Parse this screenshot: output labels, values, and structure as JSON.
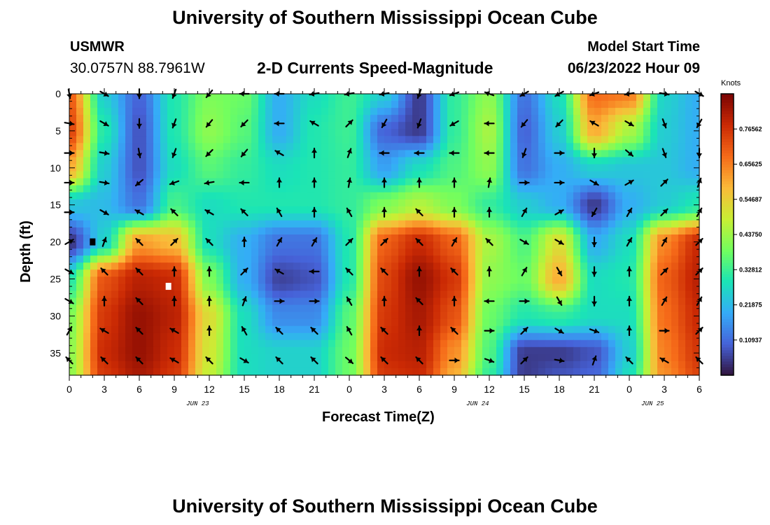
{
  "header": {
    "title": "University of Southern Mississippi Ocean Cube",
    "station_id": "USMWR",
    "station_coords": "30.0757N  88.7961W",
    "plot_title": "2-D Currents Speed-Magnitude",
    "model_start_label": "Model Start Time",
    "model_start_value": "06/23/2022 Hour 09"
  },
  "footer": {
    "title": "University of Southern Mississippi Ocean Cube"
  },
  "colorbar": {
    "units": "Knots",
    "ticks": [
      "0.10937",
      "0.21875",
      "0.32812",
      "0.43750",
      "0.54687",
      "0.65625",
      "0.76562"
    ],
    "tick_values": [
      0.109375,
      0.21875,
      0.328125,
      0.4375,
      0.546875,
      0.65625,
      0.765625
    ],
    "range": [
      0,
      0.875
    ],
    "colormap": [
      "#30123b",
      "#4662d8",
      "#35abf8",
      "#1ae4b6",
      "#72fe5e",
      "#c8ef34",
      "#faba39",
      "#f66b19",
      "#cb2a04",
      "#7a0403"
    ]
  },
  "chart_data": {
    "type": "heatmap",
    "title": "2-D Currents Speed-Magnitude",
    "xlabel": "Forecast Time(Z)",
    "ylabel": "Depth (ft)",
    "x_tick_labels": [
      "0",
      "3",
      "6",
      "9",
      "12",
      "15",
      "18",
      "21",
      "0",
      "3",
      "6",
      "9",
      "12",
      "15",
      "18",
      "21",
      "0",
      "3",
      "6"
    ],
    "date_labels": [
      {
        "label": "JUN 23",
        "hours_from_start": 11
      },
      {
        "label": "JUN 24",
        "hours_from_start": 35
      },
      {
        "label": "JUN 25",
        "hours_from_start": 50
      }
    ],
    "xlim_hours": [
      0,
      54
    ],
    "y_ticks": [
      0,
      5,
      10,
      15,
      20,
      25,
      30,
      35
    ],
    "ylim": [
      0,
      38
    ],
    "value_units": "Knots",
    "speed_field": {
      "columns_hours": [
        0,
        3,
        6,
        9,
        12,
        15,
        18,
        21,
        24,
        27,
        30,
        33,
        36,
        39,
        42,
        45,
        48,
        51,
        54
      ],
      "rows_depth_ft": [
        0,
        5,
        10,
        15,
        20,
        25,
        30,
        35,
        38
      ],
      "values": [
        [
          0.7,
          0.25,
          0.1,
          0.3,
          0.4,
          0.38,
          0.2,
          0.28,
          0.33,
          0.25,
          0.05,
          0.32,
          0.42,
          0.12,
          0.28,
          0.68,
          0.66,
          0.26,
          0.2
        ],
        [
          0.74,
          0.3,
          0.08,
          0.3,
          0.42,
          0.36,
          0.2,
          0.3,
          0.33,
          0.1,
          0.05,
          0.32,
          0.45,
          0.1,
          0.25,
          0.6,
          0.45,
          0.25,
          0.2
        ],
        [
          0.6,
          0.25,
          0.08,
          0.28,
          0.36,
          0.32,
          0.28,
          0.3,
          0.32,
          0.18,
          0.28,
          0.35,
          0.42,
          0.12,
          0.2,
          0.26,
          0.24,
          0.24,
          0.2
        ],
        [
          0.24,
          0.22,
          0.12,
          0.34,
          0.28,
          0.3,
          0.3,
          0.3,
          0.32,
          0.4,
          0.46,
          0.4,
          0.32,
          0.25,
          0.2,
          0.05,
          0.2,
          0.25,
          0.3
        ],
        [
          0.04,
          0.26,
          0.62,
          0.58,
          0.28,
          0.2,
          0.12,
          0.12,
          0.3,
          0.7,
          0.78,
          0.7,
          0.45,
          0.35,
          0.52,
          0.2,
          0.28,
          0.65,
          0.78
        ],
        [
          0.3,
          0.72,
          0.8,
          0.78,
          0.4,
          0.2,
          0.06,
          0.08,
          0.3,
          0.74,
          0.84,
          0.76,
          0.42,
          0.38,
          0.6,
          0.28,
          0.3,
          0.7,
          0.8
        ],
        [
          0.4,
          0.76,
          0.84,
          0.8,
          0.52,
          0.28,
          0.15,
          0.15,
          0.36,
          0.76,
          0.82,
          0.72,
          0.38,
          0.3,
          0.32,
          0.28,
          0.28,
          0.68,
          0.78
        ],
        [
          0.42,
          0.78,
          0.84,
          0.78,
          0.5,
          0.28,
          0.26,
          0.26,
          0.38,
          0.78,
          0.8,
          0.64,
          0.35,
          0.05,
          0.05,
          0.08,
          0.25,
          0.66,
          0.76
        ],
        [
          0.42,
          0.76,
          0.82,
          0.76,
          0.48,
          0.28,
          0.26,
          0.26,
          0.38,
          0.76,
          0.78,
          0.6,
          0.32,
          0.05,
          0.08,
          0.1,
          0.28,
          0.64,
          0.74
        ]
      ]
    },
    "current_vectors": {
      "columns_hours": [
        0,
        3,
        6,
        9,
        12,
        15,
        18,
        21,
        24,
        27,
        30,
        33,
        36,
        39,
        42,
        45,
        48,
        51,
        54
      ],
      "rows_depth_ft": [
        0,
        4,
        8,
        12,
        16,
        20,
        24,
        28,
        32,
        36
      ],
      "direction_deg": [
        [
          170,
          120,
          180,
          200,
          220,
          270,
          270,
          260,
          260,
          260,
          200,
          250,
          290,
          240,
          240,
          250,
          260,
          100,
          120
        ],
        [
          100,
          120,
          180,
          200,
          220,
          225,
          270,
          300,
          45,
          210,
          200,
          240,
          270,
          220,
          225,
          300,
          120,
          160,
          210
        ],
        [
          90,
          100,
          170,
          200,
          225,
          220,
          300,
          0,
          20,
          270,
          270,
          270,
          270,
          200,
          90,
          180,
          130,
          160,
          180
        ],
        [
          90,
          100,
          230,
          250,
          260,
          270,
          0,
          0,
          10,
          0,
          0,
          0,
          10,
          90,
          90,
          120,
          60,
          45,
          20
        ],
        [
          90,
          120,
          300,
          315,
          300,
          315,
          330,
          0,
          330,
          0,
          315,
          0,
          0,
          30,
          60,
          210,
          30,
          45,
          30
        ],
        [
          60,
          20,
          315,
          45,
          315,
          0,
          30,
          30,
          45,
          45,
          315,
          30,
          315,
          120,
          120,
          180,
          30,
          30,
          45
        ],
        [
          120,
          315,
          315,
          0,
          0,
          45,
          300,
          270,
          315,
          315,
          0,
          315,
          0,
          30,
          150,
          180,
          0,
          45,
          45
        ],
        [
          120,
          0,
          315,
          0,
          0,
          20,
          90,
          90,
          330,
          0,
          315,
          0,
          270,
          90,
          150,
          180,
          0,
          30,
          30
        ],
        [
          30,
          300,
          315,
          300,
          0,
          330,
          315,
          315,
          330,
          315,
          0,
          315,
          90,
          45,
          120,
          110,
          0,
          90,
          45
        ],
        [
          315,
          315,
          315,
          300,
          315,
          120,
          315,
          315,
          130,
          315,
          315,
          90,
          110,
          45,
          100,
          20,
          315,
          300,
          315
        ]
      ]
    },
    "point_markers": [
      {
        "hours": 2,
        "depth_ft": 20,
        "color": "black"
      },
      {
        "hours": 8.5,
        "depth_ft": 26,
        "color": "white"
      }
    ]
  }
}
